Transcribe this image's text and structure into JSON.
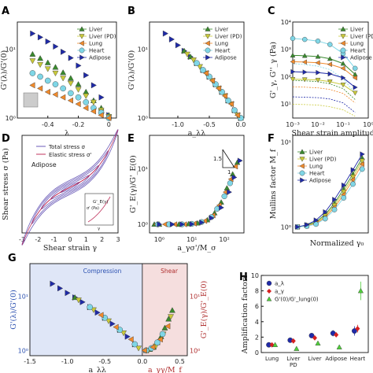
{
  "figure": {
    "panel_labels": [
      "A",
      "B",
      "C",
      "D",
      "E",
      "F",
      "G",
      "H"
    ]
  },
  "tissue_colors": {
    "Liver": "#3a8a2e",
    "Liver (PD)": "#c9c93a",
    "Lung": "#f08a2c",
    "Heart": "#7fd6e6",
    "Adipose": "#1f2aa8"
  },
  "chart_data": [
    {
      "panel": "A",
      "type": "scatter",
      "xlabel": "λ",
      "ylabel": "G'(λ)/G'(0)",
      "xlim": [
        -0.6,
        0.05
      ],
      "ylim": [
        1,
        25
      ],
      "yscale": "log",
      "xticks": [
        "-0.4",
        "-0.2",
        "0"
      ],
      "yticks": [
        "10⁰",
        "10¹"
      ],
      "legend": [
        "Liver",
        "Liver (PD)",
        "Lung",
        "Heart",
        "Adipose"
      ],
      "legend_position": "top-right",
      "series": [
        {
          "name": "Adipose",
          "x": [
            -0.5,
            -0.45,
            -0.4,
            -0.35,
            -0.3,
            -0.25,
            -0.2,
            -0.15,
            -0.1,
            -0.05,
            0
          ],
          "y": [
            17,
            15,
            13,
            11,
            9.2,
            7.5,
            5.8,
            4.2,
            3.0,
            2.0,
            1.1
          ]
        },
        {
          "name": "Liver",
          "x": [
            -0.5,
            -0.45,
            -0.4,
            -0.35,
            -0.3,
            -0.25,
            -0.2,
            -0.15,
            -0.1,
            -0.05,
            0
          ],
          "y": [
            8.5,
            7.4,
            6.4,
            5.5,
            4.6,
            3.8,
            3.1,
            2.4,
            1.8,
            1.4,
            1.1
          ]
        },
        {
          "name": "Liver (PD)",
          "x": [
            -0.5,
            -0.45,
            -0.4,
            -0.35,
            -0.3,
            -0.25,
            -0.2,
            -0.15,
            -0.1,
            -0.05,
            0
          ],
          "y": [
            6.8,
            6.0,
            5.2,
            4.5,
            3.8,
            3.2,
            2.6,
            2.1,
            1.7,
            1.3,
            1.05
          ]
        },
        {
          "name": "Heart",
          "x": [
            -0.5,
            -0.45,
            -0.4,
            -0.35,
            -0.3,
            -0.25,
            -0.2,
            -0.15,
            -0.1,
            -0.05,
            0
          ],
          "y": [
            4.5,
            4.0,
            3.5,
            3.1,
            2.7,
            2.3,
            2.0,
            1.7,
            1.4,
            1.2,
            1.0
          ]
        },
        {
          "name": "Lung",
          "x": [
            -0.5,
            -0.45,
            -0.4,
            -0.35,
            -0.3,
            -0.25,
            -0.2,
            -0.15,
            -0.1,
            -0.05,
            0
          ],
          "y": [
            3.0,
            2.7,
            2.4,
            2.2,
            2.0,
            1.8,
            1.6,
            1.4,
            1.25,
            1.1,
            1.0
          ]
        }
      ]
    },
    {
      "panel": "B",
      "type": "scatter",
      "xlabel": "a_λλ",
      "ylabel": "G'(λ)/G'(0)",
      "xlim": [
        -1.45,
        0.05
      ],
      "ylim": [
        1,
        25
      ],
      "yscale": "log",
      "xticks": [
        "-1.0",
        "-0.5",
        "0.0"
      ],
      "yticks": [
        "10⁰",
        "10¹"
      ],
      "legend": [
        "Liver",
        "Liver (PD)",
        "Lung",
        "Heart",
        "Adipose"
      ],
      "legend_position": "top-right",
      "series": [
        {
          "name": "Adipose",
          "x": [
            -1.2,
            -1.1,
            -1.0,
            -0.9,
            -0.8,
            -0.7,
            -0.6,
            -0.5,
            -0.4,
            -0.3,
            -0.2,
            -0.1,
            0
          ],
          "y": [
            17,
            14,
            11.5,
            9.5,
            7.8,
            6.3,
            5.0,
            4.0,
            3.1,
            2.4,
            1.8,
            1.3,
            1.0
          ]
        },
        {
          "name": "Liver",
          "x": [
            -0.9,
            -0.8,
            -0.7,
            -0.6,
            -0.5,
            -0.4,
            -0.3,
            -0.2,
            -0.1,
            0
          ],
          "y": [
            9.5,
            7.8,
            6.3,
            5.0,
            4.0,
            3.1,
            2.4,
            1.8,
            1.3,
            1.0
          ]
        },
        {
          "name": "Liver (PD)",
          "x": [
            -0.85,
            -0.75,
            -0.65,
            -0.55,
            -0.45,
            -0.35,
            -0.25,
            -0.15,
            -0.05
          ],
          "y": [
            8.5,
            7.0,
            5.6,
            4.5,
            3.5,
            2.7,
            2.1,
            1.6,
            1.1
          ]
        },
        {
          "name": "Heart",
          "x": [
            -0.7,
            -0.6,
            -0.5,
            -0.4,
            -0.3,
            -0.2,
            -0.1,
            0
          ],
          "y": [
            6.3,
            5.0,
            4.0,
            3.1,
            2.4,
            1.8,
            1.3,
            1.0
          ]
        },
        {
          "name": "Lung",
          "x": [
            -0.55,
            -0.45,
            -0.35,
            -0.25,
            -0.15,
            -0.05
          ],
          "y": [
            4.5,
            3.5,
            2.7,
            2.1,
            1.6,
            1.1
          ]
        }
      ]
    },
    {
      "panel": "C",
      "type": "line",
      "xlabel": "Shear strain amplitude",
      "ylabel": "G'_γ, G''_γ (Pa)",
      "xscale": "log",
      "yscale": "log",
      "xlim": [
        0.001,
        1
      ],
      "ylim": [
        3,
        10000
      ],
      "xticks": [
        "10⁻³",
        "10⁻²",
        "10⁻¹",
        "10⁰"
      ],
      "yticks": [
        "10¹",
        "10²",
        "10³",
        "10⁴"
      ],
      "legend": [
        "Liver",
        "Liver (PD)",
        "Lung",
        "Heart",
        "Adipose"
      ],
      "legend_position": "top-right",
      "series": [
        {
          "name": "Heart",
          "x": [
            0.001,
            0.003,
            0.01,
            0.03,
            0.1,
            0.3
          ],
          "y": [
            2500,
            2300,
            2000,
            1500,
            700,
            200
          ]
        },
        {
          "name": "Liver",
          "x": [
            0.001,
            0.003,
            0.01,
            0.03,
            0.1,
            0.3
          ],
          "y": [
            600,
            580,
            540,
            450,
            300,
            120
          ]
        },
        {
          "name": "Lung",
          "x": [
            0.001,
            0.003,
            0.01,
            0.03,
            0.1,
            0.3
          ],
          "y": [
            350,
            340,
            320,
            280,
            200,
            90
          ]
        },
        {
          "name": "Adipose",
          "x": [
            0.001,
            0.003,
            0.01,
            0.03,
            0.1,
            0.3
          ],
          "y": [
            150,
            145,
            140,
            125,
            90,
            40
          ]
        },
        {
          "name": "Liver (PD)",
          "x": [
            0.001,
            0.003,
            0.01,
            0.03,
            0.1,
            0.3
          ],
          "y": [
            80,
            78,
            75,
            65,
            50,
            25
          ]
        }
      ]
    },
    {
      "panel": "D",
      "type": "line",
      "xlabel": "Shear strain γ",
      "ylabel": "Shear stress σ (Pa)",
      "xlim": [
        -3,
        3
      ],
      "xticks": [
        "-3",
        "-2",
        "-1",
        "0",
        "1",
        "2",
        "3"
      ],
      "legend": [
        "Total stress σ",
        "Elastic stress σ'"
      ],
      "legend_position": "top-left",
      "annotations": [
        "Adipose",
        "σ' (Pa)",
        "G'_E(γ)",
        "γ"
      ]
    },
    {
      "panel": "E",
      "type": "scatter",
      "xlabel": "a_γσ'/M_σ",
      "ylabel": "G'_E(γ)/G'_E(0)",
      "xscale": "log",
      "yscale": "log",
      "xlim": [
        0.5,
        400
      ],
      "ylim": [
        0.7,
        40
      ],
      "xticks": [
        "10⁰",
        "10¹",
        "10²"
      ],
      "yticks": [
        "10⁰",
        "10¹"
      ],
      "annotations": [
        "1.5",
        "1"
      ],
      "series": [
        {
          "name": "Liver",
          "x": [
            0.7,
            1,
            2,
            4,
            8,
            15,
            30,
            50,
            80,
            120,
            180,
            250
          ],
          "y": [
            1,
            1,
            1,
            1,
            1.02,
            1.05,
            1.2,
            1.6,
            2.5,
            4.5,
            8,
            13
          ]
        },
        {
          "name": "Lung",
          "x": [
            0.8,
            1.5,
            3,
            6,
            12,
            25,
            45,
            70,
            110,
            160,
            220
          ],
          "y": [
            1,
            1,
            1,
            1,
            1.03,
            1.15,
            1.45,
            2.2,
            3.8,
            6.5,
            11
          ]
        },
        {
          "name": "Heart",
          "x": [
            0.9,
            2,
            5,
            10,
            20,
            40,
            60,
            100,
            150
          ],
          "y": [
            1,
            1,
            1,
            1.02,
            1.1,
            1.35,
            1.9,
            3.2,
            5.5
          ]
        },
        {
          "name": "Adipose",
          "x": [
            1,
            2.5,
            5,
            10,
            20,
            40,
            80,
            140,
            200,
            300
          ],
          "y": [
            1,
            1,
            1,
            1.01,
            1.08,
            1.3,
            2.0,
            3.8,
            7,
            14
          ]
        }
      ]
    },
    {
      "panel": "F",
      "type": "scatter",
      "xlabel": "Normalized γ₀",
      "ylabel": "Mullins factor M_f",
      "xscale": "log",
      "yscale": "log",
      "yticks": [
        "10⁰",
        "10¹"
      ],
      "legend": [
        "Liver",
        "Liver (PD)",
        "Lung",
        "Heart",
        "Adipose"
      ],
      "legend_position": "top-left",
      "series": [
        {
          "name": "Liver",
          "x": [
            1,
            2,
            4,
            8,
            16,
            32,
            64,
            128
          ],
          "y": [
            1,
            1.05,
            1.15,
            1.4,
            1.9,
            2.8,
            4.2,
            6.5
          ]
        },
        {
          "name": "Liver (PD)",
          "x": [
            1,
            2,
            4,
            8,
            16,
            32,
            64,
            128
          ],
          "y": [
            1,
            1.04,
            1.12,
            1.35,
            1.8,
            2.6,
            3.9,
            6.0
          ]
        },
        {
          "name": "Lung",
          "x": [
            1,
            2,
            4,
            8,
            16,
            32,
            64,
            128
          ],
          "y": [
            1,
            1.03,
            1.1,
            1.3,
            1.7,
            2.4,
            3.6,
            5.5
          ]
        },
        {
          "name": "Heart",
          "x": [
            1,
            2,
            4,
            8,
            16,
            32,
            64,
            128
          ],
          "y": [
            1,
            1.02,
            1.08,
            1.25,
            1.6,
            2.2,
            3.2,
            4.8
          ]
        },
        {
          "name": "Adipose",
          "x": [
            1,
            2,
            4,
            8,
            16,
            32,
            64,
            128
          ],
          "y": [
            1,
            1.06,
            1.2,
            1.5,
            2.1,
            3.1,
            4.7,
            7.2
          ]
        }
      ]
    },
    {
      "panel": "G",
      "type": "scatter",
      "xlabel_left": "a_λλ",
      "xlabel_right": "a_γγ/M_f",
      "ylabel_left": "G'(λ)/G'(0)",
      "ylabel_right": "G'_E(γ)/G'_E(0)",
      "yscale": "log",
      "xlim": [
        -1.5,
        0.6
      ],
      "ylim": [
        0.8,
        40
      ],
      "xticks": [
        "-1.5",
        "-1.0",
        "-0.5",
        "0.0",
        "0.5"
      ],
      "yticks": [
        "10⁰",
        "10¹"
      ],
      "regions": [
        "Compression",
        "Shear"
      ],
      "series": [
        {
          "name": "Adipose",
          "x": [
            -1.2,
            -1.1,
            -1.0,
            -0.9,
            -0.8,
            -0.7,
            -0.6,
            -0.5,
            -0.4,
            -0.3,
            -0.2,
            -0.1
          ],
          "y": [
            17,
            14,
            11.5,
            9.5,
            7.8,
            6.3,
            5.0,
            4.0,
            3.1,
            2.4,
            1.8,
            1.3
          ]
        },
        {
          "name": "Liver",
          "x": [
            -0.9,
            -0.7,
            -0.5,
            -0.3,
            -0.1,
            0.05,
            0.1,
            0.15,
            0.2,
            0.25,
            0.3,
            0.35,
            0.4
          ],
          "y": [
            9.5,
            6.3,
            4.0,
            2.4,
            1.3,
            1.0,
            1.05,
            1.15,
            1.4,
            1.8,
            2.6,
            3.8,
            5.5
          ]
        },
        {
          "name": "Liver (PD)",
          "x": [
            -0.85,
            -0.65,
            -0.45,
            -0.25,
            -0.05,
            0.08,
            0.18,
            0.28,
            0.38
          ],
          "y": [
            8.5,
            5.6,
            3.5,
            2.1,
            1.1,
            1.0,
            1.2,
            2.0,
            4.2
          ]
        },
        {
          "name": "Heart",
          "x": [
            -0.7,
            -0.5,
            -0.3,
            -0.1,
            0.05,
            0.12,
            0.2,
            0.27
          ],
          "y": [
            6.3,
            4.0,
            2.4,
            1.3,
            1.0,
            1.1,
            1.4,
            2.0
          ]
        },
        {
          "name": "Lung",
          "x": [
            -0.55,
            -0.35,
            -0.15,
            0.03,
            0.14,
            0.24,
            0.34
          ],
          "y": [
            4.5,
            2.7,
            1.6,
            1.0,
            1.15,
            1.6,
            2.8
          ]
        }
      ]
    },
    {
      "panel": "H",
      "type": "scatter",
      "ylabel": "Amplification factors",
      "categories": [
        "Lung",
        "Liver\nPD",
        "Liver",
        "Adipose",
        "Heart"
      ],
      "ylim": [
        0,
        10
      ],
      "yticks": [
        "0",
        "2",
        "4",
        "6",
        "8",
        "10"
      ],
      "legend": [
        "a_λ",
        "a_γ",
        "G'(0)/G'_lung(0)"
      ],
      "legend_position": "top-left",
      "series": [
        {
          "name": "a_λ",
          "values": [
            1.0,
            1.6,
            2.2,
            2.5,
            2.8
          ],
          "err": [
            0.1,
            0.3,
            0.3,
            0.4,
            0.6
          ]
        },
        {
          "name": "a_γ",
          "values": [
            1.0,
            1.5,
            1.9,
            2.3,
            3.1
          ],
          "err": [
            0.1,
            0.2,
            0.3,
            0.3,
            0.5
          ]
        },
        {
          "name": "G'(0)/G'_lung(0)",
          "values": [
            1.0,
            0.5,
            1.2,
            0.7,
            8.0
          ],
          "err": [
            0.1,
            0.1,
            0.2,
            0.2,
            1.2
          ]
        }
      ]
    }
  ]
}
